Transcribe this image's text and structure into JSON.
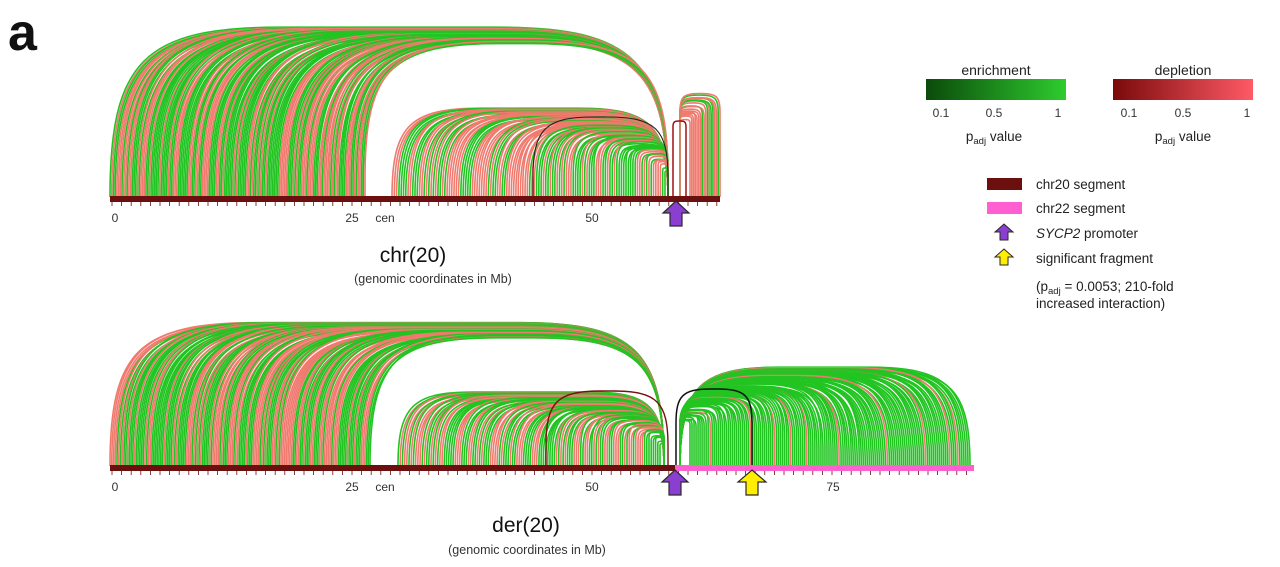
{
  "panel_label": "a",
  "colors": {
    "enrichment_dark": "#0b4a0b",
    "enrichment_bright": "#2ecc2e",
    "depletion_dark": "#7a0a0a",
    "depletion_bright": "#ff5a66",
    "arc_green": "#22c422",
    "arc_salmon": "#f07a6e",
    "chr20_segment": "#6b0f0f",
    "chr22_segment": "#ff5fd0",
    "promoter_arrow": "#8a3fd0",
    "fragment_arrow": "#ffee00"
  },
  "colorbars": [
    {
      "title": "enrichment",
      "ticks": [
        "0.1",
        "0.5",
        "1"
      ],
      "label_main": "p",
      "label_sub": "adj",
      "label_tail": " value"
    },
    {
      "title": "depletion",
      "ticks": [
        "0.1",
        "0.5",
        "1"
      ],
      "label_main": "p",
      "label_sub": "adj",
      "label_tail": " value"
    }
  ],
  "legend": {
    "chr20": "chr20 segment",
    "chr22": "chr22 segment",
    "promoter_gene": "SYCP2",
    "promoter_rest": " promoter",
    "fragment": "significant fragment",
    "note_open": "(p",
    "note_sub": "adj",
    "note_rest": " = 0.0053; 210-fold",
    "note_line2": "increased interaction)"
  },
  "panels": [
    {
      "id": "chr20",
      "title": "chr(20)",
      "subtitle": "(genomic coordinates in Mb)",
      "length_mb": 63,
      "ticks": [
        {
          "mb": 0,
          "label": "0"
        },
        {
          "mb": 25,
          "label": "25"
        },
        {
          "mb": 50,
          "label": "50"
        }
      ],
      "cen_label": "cen",
      "promoter_mb": 58.5
    },
    {
      "id": "der20",
      "title": "der(20)",
      "subtitle": "(genomic coordinates in Mb)",
      "length_mb": 89,
      "chr20_end_mb": 59,
      "ticks": [
        {
          "mb": 0,
          "label": "0"
        },
        {
          "mb": 25,
          "label": "25"
        },
        {
          "mb": 50,
          "label": "50"
        },
        {
          "mb": 75,
          "label": "75"
        }
      ],
      "cen_label": "cen",
      "promoter_mb": 58.5,
      "fragment_mb": 66.5
    }
  ]
}
